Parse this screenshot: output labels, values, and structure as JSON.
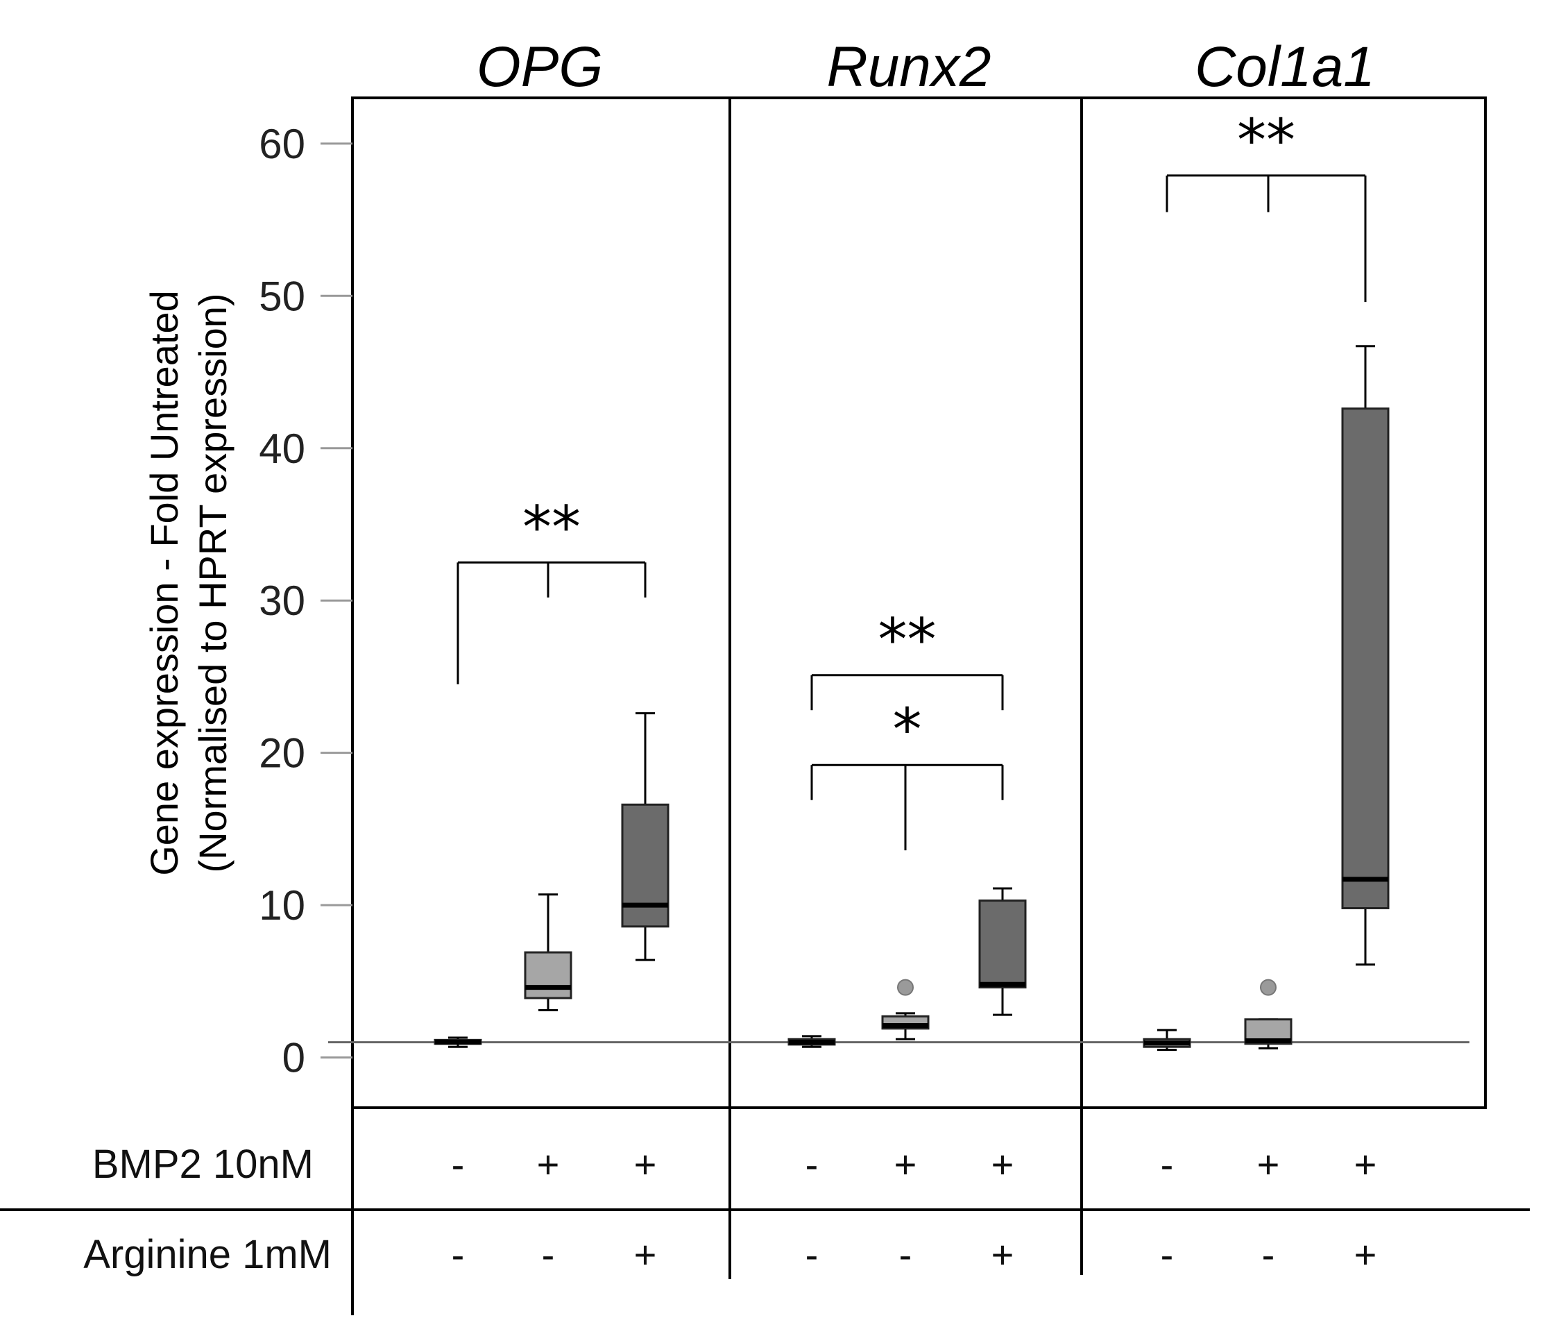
{
  "chart_data": {
    "type": "boxplot",
    "ylabel_line1": "Gene expression - Fold Untreated",
    "ylabel_line2": "(Normalised to HPRT expression)",
    "ylim": [
      -3.3,
      63
    ],
    "yticks": [
      0,
      10,
      20,
      30,
      40,
      50,
      60
    ],
    "reference_line": 1,
    "treatments": [
      {
        "label": "BMP2 10nM",
        "values": [
          "-",
          "+",
          "+"
        ]
      },
      {
        "label": "Arginine 1mM",
        "values": [
          "-",
          "-",
          "+"
        ]
      }
    ],
    "colors": {
      "light": "#a6a6a6",
      "dark": "#6b6b6b",
      "outlier": "#9a9a9a",
      "refline": "#666666"
    },
    "panels": [
      {
        "title": "OPG",
        "groups": [
          {
            "whisker_low": 0.7,
            "q1": 0.9,
            "median": 1.0,
            "q3": 1.15,
            "whisker_high": 1.3,
            "fill": "light",
            "outliers": []
          },
          {
            "whisker_low": 3.1,
            "q1": 3.9,
            "median": 4.6,
            "q3": 6.9,
            "whisker_high": 10.7,
            "fill": "light",
            "outliers": []
          },
          {
            "whisker_low": 6.4,
            "q1": 8.6,
            "median": 10.0,
            "q3": 16.6,
            "whisker_high": 22.6,
            "fill": "dark",
            "outliers": []
          }
        ],
        "significance": [
          {
            "label": "**",
            "groups": [
              0,
              1,
              2
            ],
            "bracket_y": 32.5,
            "leg_ends": [
              24.5,
              30.2,
              30.2
            ]
          }
        ]
      },
      {
        "title": "Runx2",
        "groups": [
          {
            "whisker_low": 0.7,
            "q1": 0.85,
            "median": 1.0,
            "q3": 1.2,
            "whisker_high": 1.4,
            "fill": "light",
            "outliers": []
          },
          {
            "whisker_low": 1.2,
            "q1": 1.9,
            "median": 2.1,
            "q3": 2.7,
            "whisker_high": 2.9,
            "fill": "light",
            "outliers": [
              4.6
            ]
          },
          {
            "whisker_low": 2.8,
            "q1": 4.6,
            "median": 4.8,
            "q3": 10.3,
            "whisker_high": 11.1,
            "fill": "dark",
            "outliers": []
          }
        ],
        "significance": [
          {
            "label": "**",
            "groups": [
              0,
              2
            ],
            "bracket_y": 25.1,
            "leg_ends": [
              22.8,
              22.8
            ]
          },
          {
            "label": "*",
            "groups": [
              0,
              1,
              2
            ],
            "bracket_y": 19.2,
            "leg_ends": [
              16.9,
              13.6,
              16.9
            ]
          }
        ]
      },
      {
        "title": "Col1a1",
        "groups": [
          {
            "whisker_low": 0.5,
            "q1": 0.7,
            "median": 0.95,
            "q3": 1.2,
            "whisker_high": 1.8,
            "fill": "light",
            "outliers": []
          },
          {
            "whisker_low": 0.6,
            "q1": 0.9,
            "median": 1.1,
            "q3": 2.5,
            "whisker_high": 2.5,
            "fill": "light",
            "outliers": [
              4.6
            ]
          },
          {
            "whisker_low": 6.1,
            "q1": 9.8,
            "median": 11.7,
            "q3": 42.6,
            "whisker_high": 46.7,
            "fill": "dark",
            "outliers": []
          }
        ],
        "significance": [
          {
            "label": "**",
            "groups": [
              0,
              1,
              2
            ],
            "bracket_y": 57.9,
            "leg_ends": [
              55.5,
              55.5,
              49.6
            ]
          }
        ]
      }
    ]
  }
}
